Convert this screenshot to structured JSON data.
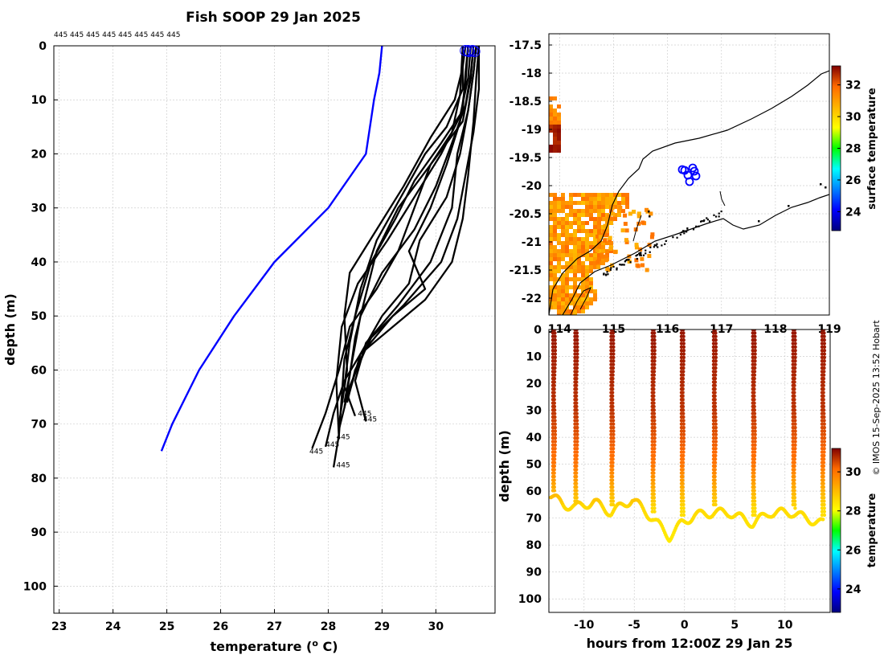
{
  "colors": {
    "mean_profile": "#0000ff",
    "profiles": "#000000",
    "grid": "#cfcfcf",
    "deployments": "#0000ff"
  },
  "credit": "© IMOS 15-Sep-2025 13:52 Hobart",
  "chart_data": [
    {
      "name": "profiles",
      "type": "line",
      "title": "Fish SOOP 29 Jan 2025",
      "xlabel": "temperature (o C)",
      "ylabel": "depth (m)",
      "xlim": [
        22.9,
        31.1
      ],
      "ylim": [
        0,
        105
      ],
      "xticks": [
        "23",
        "24",
        "25",
        "26",
        "27",
        "28",
        "29",
        "30"
      ],
      "yticks": [
        "0",
        "10",
        "20",
        "30",
        "40",
        "50",
        "60",
        "70",
        "80",
        "90",
        "100"
      ],
      "top_labels": "445 445 445 445 445 445 445 445",
      "end_labels": [
        {
          "text": "445",
          "t": 28.55,
          "d": 68.5
        },
        {
          "text": "445",
          "t": 28.65,
          "d": 69.5
        },
        {
          "text": "445",
          "t": 28.15,
          "d": 72.8
        },
        {
          "text": "445",
          "t": 27.95,
          "d": 74.2
        },
        {
          "text": "445",
          "t": 27.65,
          "d": 75.5
        },
        {
          "text": "445",
          "t": 28.15,
          "d": 78.0
        }
      ],
      "series": [
        {
          "name": "climatology",
          "style": "blue",
          "t": [
            29.0,
            28.95,
            28.85,
            28.7,
            28.0,
            27.0,
            26.25,
            25.6,
            25.1,
            24.9
          ],
          "d": [
            0,
            5,
            10,
            20,
            30,
            40,
            50,
            60,
            70,
            75
          ]
        },
        {
          "name": "p1",
          "t": [
            30.6,
            30.55,
            30.5,
            30.1,
            29.6,
            29.25,
            28.8,
            28.5,
            28.3,
            28.25,
            28.2,
            28.1
          ],
          "d": [
            0,
            5,
            12,
            18,
            25,
            32,
            40,
            50,
            58,
            65,
            72,
            78
          ]
        },
        {
          "name": "p2",
          "t": [
            30.7,
            30.65,
            30.5,
            29.9,
            29.6,
            29.3,
            28.9,
            28.4,
            28.2,
            27.95,
            27.7
          ],
          "d": [
            0,
            6,
            14,
            22,
            30,
            38,
            45,
            52,
            60,
            68,
            74.5
          ]
        },
        {
          "name": "p3",
          "t": [
            30.5,
            30.5,
            30.2,
            29.8,
            29.35,
            28.9,
            28.6,
            28.4,
            28.3,
            28.5
          ],
          "d": [
            0,
            8,
            15,
            20,
            28,
            36,
            45,
            55,
            63,
            68.5
          ]
        },
        {
          "name": "p4",
          "t": [
            30.75,
            30.7,
            30.6,
            30.4,
            30.3,
            29.9,
            29.3,
            28.7,
            28.5,
            28.7
          ],
          "d": [
            0,
            5,
            12,
            20,
            30,
            40,
            48,
            55,
            62,
            69.5
          ]
        },
        {
          "name": "p5",
          "t": [
            30.65,
            30.6,
            30.45,
            30.1,
            29.6,
            29.1,
            28.55,
            28.25,
            28.15,
            28.2
          ],
          "d": [
            0,
            6,
            13,
            20,
            28,
            36,
            44,
            52,
            62,
            72.8
          ]
        },
        {
          "name": "p6",
          "t": [
            30.8,
            30.75,
            30.7,
            30.6,
            30.5,
            30.3,
            29.8,
            29.2,
            28.6,
            28.3,
            28.1,
            27.95
          ],
          "d": [
            0,
            6,
            14,
            24,
            32,
            40,
            47,
            52,
            57,
            62,
            68,
            74.2
          ]
        },
        {
          "name": "p7",
          "t": [
            30.55,
            30.5,
            30.35,
            29.9,
            29.4,
            28.9,
            28.4,
            28.3,
            28.35,
            28.2
          ],
          "d": [
            0,
            4,
            10,
            17,
            26,
            34,
            42,
            50,
            60,
            70
          ]
        },
        {
          "name": "p8",
          "t": [
            30.7,
            30.65,
            30.55,
            30.3,
            30.0,
            29.6,
            29.0,
            28.6,
            28.45,
            28.3
          ],
          "d": [
            0,
            5,
            11,
            18,
            26,
            34,
            42,
            50,
            58,
            66
          ]
        },
        {
          "name": "p9",
          "t": [
            30.6,
            30.55,
            30.45,
            30.2,
            29.9,
            29.5,
            29.8,
            29.2,
            28.7,
            28.4,
            28.2
          ],
          "d": [
            0,
            7,
            14,
            22,
            30,
            38,
            45,
            50,
            56,
            63,
            71
          ]
        },
        {
          "name": "p10",
          "t": [
            30.75,
            30.7,
            30.6,
            30.45,
            30.2,
            29.7,
            29.5,
            29.0,
            28.6,
            28.4
          ],
          "d": [
            0,
            5,
            12,
            20,
            28,
            36,
            44,
            50,
            57,
            64
          ]
        },
        {
          "name": "p11",
          "t": [
            30.5,
            30.45,
            30.3,
            29.9,
            29.3,
            28.9,
            28.7,
            28.5,
            28.4,
            28.3
          ],
          "d": [
            0,
            9,
            16,
            22,
            30,
            38,
            46,
            54,
            61,
            67
          ]
        },
        {
          "name": "p12",
          "t": [
            30.8,
            30.8,
            30.7,
            30.55,
            30.4,
            30.1,
            29.4,
            28.8,
            28.5,
            28.35
          ],
          "d": [
            0,
            8,
            16,
            24,
            32,
            40,
            48,
            54,
            60,
            66
          ]
        }
      ]
    },
    {
      "name": "map",
      "type": "heatmap",
      "ylim": [
        -22.3,
        -17.3
      ],
      "xlim": [
        113.8,
        119.0
      ],
      "yticks": [
        "-17.5",
        "-18",
        "-18.5",
        "-19",
        "-19.5",
        "-20",
        "-20.5",
        "-21",
        "-21.5",
        "-22"
      ],
      "xticks": [
        "114",
        "115",
        "116",
        "117",
        "118",
        "119"
      ],
      "colorbar": {
        "label": "surface temperature",
        "min": 22.8,
        "max": 33.2,
        "ticks": [
          "24",
          "26",
          "28",
          "30",
          "32"
        ]
      }
    },
    {
      "name": "section",
      "type": "scatter",
      "xlabel": "hours from 12:00Z 29 Jan 25",
      "ylabel": "depth (m)",
      "xlim": [
        -13.5,
        14.5
      ],
      "ylim": [
        0,
        105
      ],
      "xticks": [
        "-10",
        "-5",
        "0",
        "5",
        "10"
      ],
      "yticks": [
        "0",
        "10",
        "20",
        "30",
        "40",
        "50",
        "60",
        "70",
        "80",
        "90",
        "100"
      ],
      "casts_hours": [
        -13.1,
        -10.9,
        -7.3,
        -3.2,
        -0.3,
        2.9,
        6.8,
        10.8,
        13.7
      ],
      "colorbar": {
        "label": "temperature",
        "min": 22.8,
        "max": 31.2,
        "ticks": [
          "24",
          "26",
          "28",
          "30"
        ]
      }
    }
  ]
}
